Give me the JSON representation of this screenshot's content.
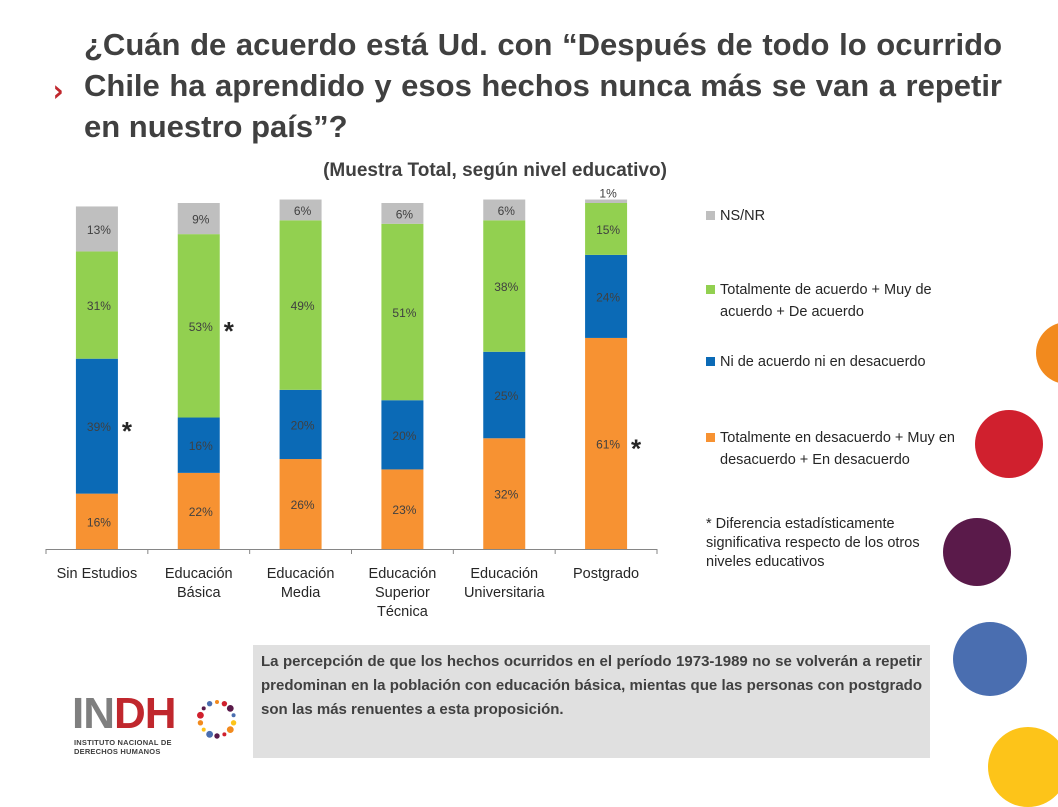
{
  "slide": {
    "title": "¿Cuán de acuerdo está Ud. con “Después de todo lo ocurrido Chile ha aprendido y esos hechos nunca más se van a repetir en nuestro país”?",
    "bullet": "›",
    "commentary": "La percepción de que los hechos ocurridos en el período 1973-1989 no se volverán a repetir predominan en la población con educación básica, mientas que las personas con postgrado son las más renuentes a esta proposición.",
    "note": "* Diferencia estadísticamente significativa respecto de los otros niveles educativos",
    "logo": {
      "word_in": "IN",
      "word_dh": "DH",
      "line1": "INSTITUTO NACIONAL DE",
      "line2": "DERECHOS HUMANOS"
    }
  },
  "chart_data": {
    "type": "bar",
    "stacked": true,
    "title": "(Muestra Total, según nivel educativo)",
    "categories": [
      "Sin Estudios",
      "Educación Básica",
      "Educación Media",
      "Educación Superior Técnica",
      "Educación Universitaria",
      "Postgrado"
    ],
    "category_lines": [
      [
        "Sin Estudios"
      ],
      [
        "Educación",
        "Básica"
      ],
      [
        "Educación",
        "Media"
      ],
      [
        "Educación",
        "Superior",
        "Técnica"
      ],
      [
        "Educación",
        "Universitaria"
      ],
      [
        "Postgrado"
      ]
    ],
    "ylim": [
      0,
      100
    ],
    "series": [
      {
        "name": "Totalmente en desacuerdo + Muy en desacuerdo + En desacuerdo",
        "color": "#f79232",
        "values": [
          16,
          22,
          26,
          23,
          32,
          61
        ],
        "labels": [
          "16%",
          "22%",
          "26%",
          "23%",
          "32%",
          "61%"
        ]
      },
      {
        "name": "Ni de acuerdo ni en desacuerdo",
        "color": "#0b6ab6",
        "values": [
          39,
          16,
          20,
          20,
          25,
          24
        ],
        "labels": [
          "39%",
          "16%",
          "20%",
          "20%",
          "25%",
          "24%"
        ]
      },
      {
        "name": "Totalmente de acuerdo + Muy de acuerdo + De acuerdo",
        "color": "#92d050",
        "values": [
          31,
          53,
          49,
          51,
          38,
          15
        ],
        "labels": [
          "31%",
          "53%",
          "49%",
          "51%",
          "38%",
          "15%"
        ]
      },
      {
        "name": "NS/NR",
        "color": "#bfbfbf",
        "values": [
          13,
          9,
          6,
          6,
          6,
          1
        ],
        "labels": [
          "13%",
          "9%",
          "6%",
          "6%",
          "6%",
          "1%"
        ]
      }
    ],
    "legend_order": [
      3,
      2,
      1,
      0
    ],
    "significance_marks": [
      {
        "category": 0,
        "series": 1,
        "text": "*"
      },
      {
        "category": 1,
        "series": 2,
        "text": "*"
      },
      {
        "category": 5,
        "series": 0,
        "text": "*"
      }
    ],
    "legend_position": "right",
    "grid": false
  },
  "decor": {
    "circle_colors": [
      "#f28a1e",
      "#d0202e",
      "#5a1a4a",
      "#4a6eb0",
      "#fdc419"
    ]
  }
}
